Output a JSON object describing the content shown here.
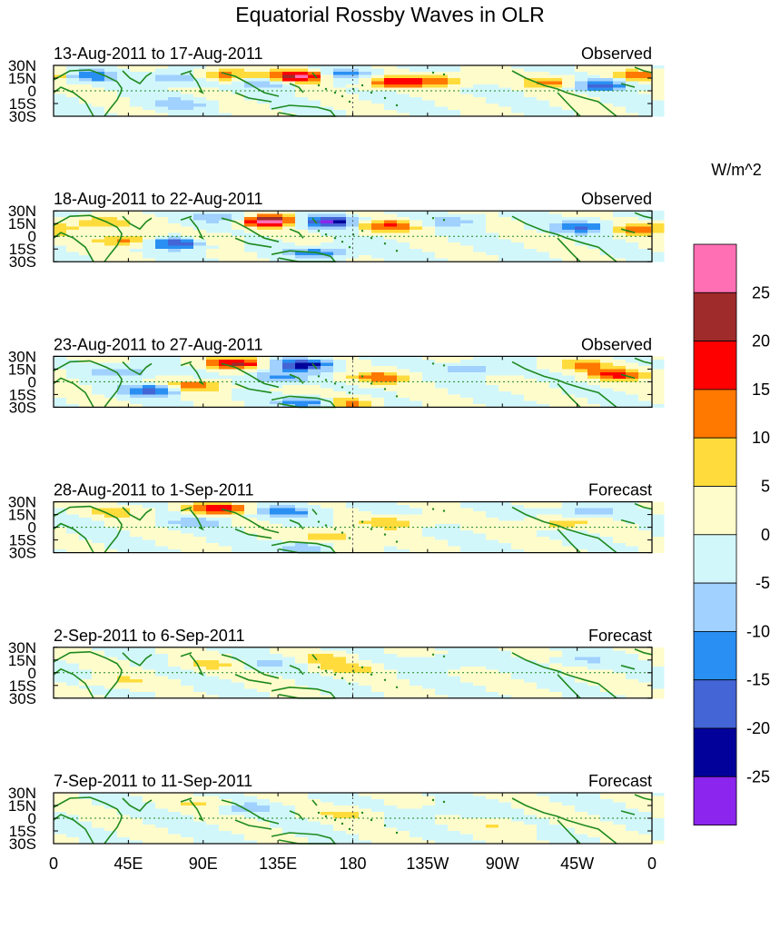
{
  "chart_data": {
    "type": "heatmap",
    "title": "Equatorial Rossby Waves in OLR",
    "units": "W/m^2",
    "x_axis": {
      "range_deg": [
        0,
        360
      ],
      "ticks": [
        {
          "label": "0",
          "deg": 0
        },
        {
          "label": "45E",
          "deg": 45
        },
        {
          "label": "90E",
          "deg": 90
        },
        {
          "label": "135E",
          "deg": 135
        },
        {
          "label": "180",
          "deg": 180
        },
        {
          "label": "135W",
          "deg": 225
        },
        {
          "label": "90W",
          "deg": 270
        },
        {
          "label": "45W",
          "deg": 315
        },
        {
          "label": "0",
          "deg": 360
        }
      ]
    },
    "y_axis": {
      "range_deg": [
        -30,
        30
      ],
      "ticks": [
        {
          "label": "30N",
          "lat": 30
        },
        {
          "label": "15N",
          "lat": 15
        },
        {
          "label": "0",
          "lat": 0
        },
        {
          "label": "15S",
          "lat": -15
        },
        {
          "label": "30S",
          "lat": -30
        }
      ]
    },
    "colorbar": {
      "labels": [
        "25",
        "20",
        "15",
        "10",
        "5",
        "0",
        "-5",
        "-10",
        "-15",
        "-20",
        "-25"
      ],
      "colors": [
        "#ff6fb4",
        "#a02b2b",
        "#ff0000",
        "#ff7800",
        "#ffdc3c",
        "#fffccc",
        "#d2f7fb",
        "#a0d1ff",
        "#2a8ff2",
        "#4465d6",
        "#02029b",
        "#8c25ee"
      ]
    },
    "panels": [
      {
        "date_range": "13-Aug-2011 to 17-Aug-2011",
        "kind": "Observed",
        "scale": 1.0,
        "blobs": [
          {
            "lon": 148,
            "lat": 17,
            "val": 30
          },
          {
            "lon": 100,
            "lat": 18,
            "val": 17
          },
          {
            "lon": 78,
            "lat": 15,
            "val": -14
          },
          {
            "lon": 172,
            "lat": 20,
            "val": -14
          },
          {
            "lon": 205,
            "lat": 10,
            "val": 16
          },
          {
            "lon": 230,
            "lat": 12,
            "val": 12
          },
          {
            "lon": 300,
            "lat": 10,
            "val": 12
          },
          {
            "lon": 330,
            "lat": 7,
            "val": -17
          },
          {
            "lon": 20,
            "lat": 17,
            "val": -15
          },
          {
            "lon": 355,
            "lat": 18,
            "val": 14
          },
          {
            "lon": 75,
            "lat": -15,
            "val": -8
          },
          {
            "lon": 130,
            "lat": 10,
            "val": -10
          }
        ]
      },
      {
        "date_range": "18-Aug-2011 to 22-Aug-2011",
        "kind": "Observed",
        "scale": 1.0,
        "blobs": [
          {
            "lon": 130,
            "lat": 18,
            "val": 30
          },
          {
            "lon": 165,
            "lat": 17,
            "val": -25
          },
          {
            "lon": 75,
            "lat": -8,
            "val": -23
          },
          {
            "lon": 200,
            "lat": 12,
            "val": 16
          },
          {
            "lon": 45,
            "lat": -5,
            "val": 13
          },
          {
            "lon": 30,
            "lat": 15,
            "val": 11
          },
          {
            "lon": 105,
            "lat": 22,
            "val": -12
          },
          {
            "lon": 320,
            "lat": 10,
            "val": -17
          },
          {
            "lon": 350,
            "lat": 8,
            "val": 15
          },
          {
            "lon": 160,
            "lat": -20,
            "val": -14
          },
          {
            "lon": 95,
            "lat": -5,
            "val": 8
          },
          {
            "lon": 240,
            "lat": 18,
            "val": -8
          }
        ]
      },
      {
        "date_range": "23-Aug-2011 to 27-Aug-2011",
        "kind": "Observed",
        "scale": 1.0,
        "blobs": [
          {
            "lon": 110,
            "lat": 22,
            "val": 20
          },
          {
            "lon": 150,
            "lat": 20,
            "val": -23
          },
          {
            "lon": 60,
            "lat": -10,
            "val": -18
          },
          {
            "lon": 175,
            "lat": -25,
            "val": 15
          },
          {
            "lon": 135,
            "lat": 5,
            "val": -12
          },
          {
            "lon": 85,
            "lat": -5,
            "val": 14
          },
          {
            "lon": 195,
            "lat": 5,
            "val": 13
          },
          {
            "lon": 320,
            "lat": 20,
            "val": 12
          },
          {
            "lon": 340,
            "lat": 8,
            "val": 17
          },
          {
            "lon": 155,
            "lat": -25,
            "val": -17
          },
          {
            "lon": 40,
            "lat": 12,
            "val": -10
          },
          {
            "lon": 250,
            "lat": 15,
            "val": -9
          }
        ]
      },
      {
        "date_range": "28-Aug-2011 to 1-Sep-2011",
        "kind": "Forecast",
        "scale": 1.0,
        "blobs": [
          {
            "lon": 100,
            "lat": 22,
            "val": 18
          },
          {
            "lon": 140,
            "lat": 18,
            "val": -13
          },
          {
            "lon": 165,
            "lat": -10,
            "val": 9
          },
          {
            "lon": 175,
            "lat": -25,
            "val": 8
          },
          {
            "lon": 155,
            "lat": -25,
            "val": -13
          },
          {
            "lon": 205,
            "lat": 5,
            "val": 10
          },
          {
            "lon": 320,
            "lat": 18,
            "val": -9
          },
          {
            "lon": 305,
            "lat": 5,
            "val": 8
          },
          {
            "lon": 85,
            "lat": 5,
            "val": -8
          },
          {
            "lon": 40,
            "lat": 18,
            "val": 7
          }
        ]
      },
      {
        "date_range": "2-Sep-2011 to 6-Sep-2011",
        "kind": "Forecast",
        "scale": 1.0,
        "blobs": [
          {
            "lon": 160,
            "lat": 15,
            "val": 9
          },
          {
            "lon": 135,
            "lat": 12,
            "val": -7
          },
          {
            "lon": 180,
            "lat": 5,
            "val": 7
          },
          {
            "lon": 230,
            "lat": 12,
            "val": -6
          },
          {
            "lon": 40,
            "lat": -10,
            "val": 6
          },
          {
            "lon": 320,
            "lat": 15,
            "val": -6
          },
          {
            "lon": 95,
            "lat": 10,
            "val": 6
          }
        ]
      },
      {
        "date_range": "7-Sep-2011 to 11-Sep-2011",
        "kind": "Forecast",
        "scale": 1.0,
        "blobs": [
          {
            "lon": 120,
            "lat": 12,
            "val": -7
          },
          {
            "lon": 175,
            "lat": 5,
            "val": 6
          },
          {
            "lon": 240,
            "lat": 10,
            "val": -5
          },
          {
            "lon": 90,
            "lat": 18,
            "val": 5
          },
          {
            "lon": 270,
            "lat": -10,
            "val": 5
          }
        ]
      }
    ]
  }
}
